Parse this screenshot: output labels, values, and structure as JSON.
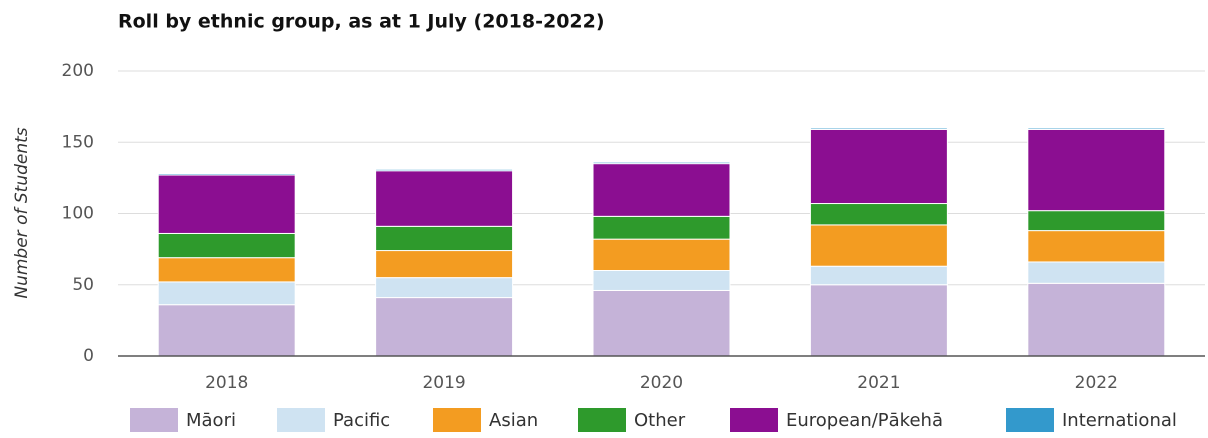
{
  "chart_data": {
    "type": "stacked_bar",
    "title": "Roll by ethnic group, as at 1 July (2018-2022)",
    "y_label": "Number of Students",
    "categories": [
      "2018",
      "2019",
      "2020",
      "2021",
      "2022"
    ],
    "series": [
      {
        "name": "Māori",
        "color": "#c5b3d8",
        "values": [
          36,
          41,
          46,
          50,
          51
        ]
      },
      {
        "name": "Pacific",
        "color": "#cfe3f2",
        "values": [
          16,
          14,
          14,
          13,
          15
        ]
      },
      {
        "name": "Asian",
        "color": "#f39c21",
        "values": [
          17,
          19,
          22,
          29,
          22
        ]
      },
      {
        "name": "Other",
        "color": "#2e9a2c",
        "values": [
          17,
          17,
          16,
          15,
          14
        ]
      },
      {
        "name": "European/Pākehā",
        "color": "#8b0e91",
        "values": [
          41,
          39,
          37,
          52,
          57
        ]
      },
      {
        "name": "International",
        "color": "#3399cc",
        "values": [
          1,
          1,
          1,
          1,
          1
        ]
      }
    ],
    "ylim": [
      0,
      200
    ],
    "yticks": [
      0,
      50,
      100,
      150,
      200
    ],
    "grid": true
  }
}
